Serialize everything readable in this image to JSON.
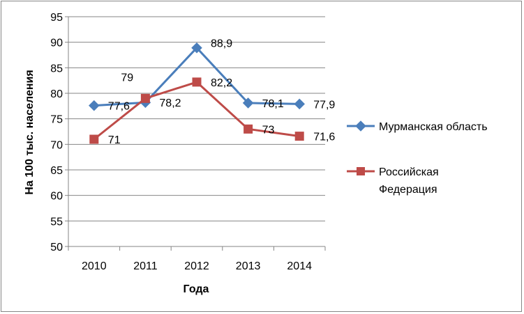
{
  "chart_data": {
    "type": "line",
    "categories": [
      "2010",
      "2011",
      "2012",
      "2013",
      "2014"
    ],
    "series": [
      {
        "name": "Мурманская область",
        "values": [
          77.6,
          78.2,
          88.9,
          78.1,
          77.9
        ],
        "labels": [
          "77,6",
          "78,2",
          "88,9",
          "78,1",
          "77,9"
        ],
        "color": "#4a7ebb",
        "marker": "diamond"
      },
      {
        "name": "Российская Федерация",
        "values": [
          71,
          79,
          82.2,
          73,
          71.6
        ],
        "labels": [
          "71",
          "79",
          "82,2",
          "73",
          "71,6"
        ],
        "color": "#be4b48",
        "marker": "square"
      }
    ],
    "ylim": [
      50,
      95
    ],
    "yticks": [
      "50",
      "55",
      "60",
      "65",
      "70",
      "75",
      "80",
      "85",
      "90",
      "95"
    ],
    "xlabel": "Года",
    "ylabel": "На 100 тыс. населения",
    "legend": {
      "position": "right",
      "items": [
        "Мурманская область",
        "Российская",
        "Федерация"
      ]
    },
    "grid": true
  }
}
